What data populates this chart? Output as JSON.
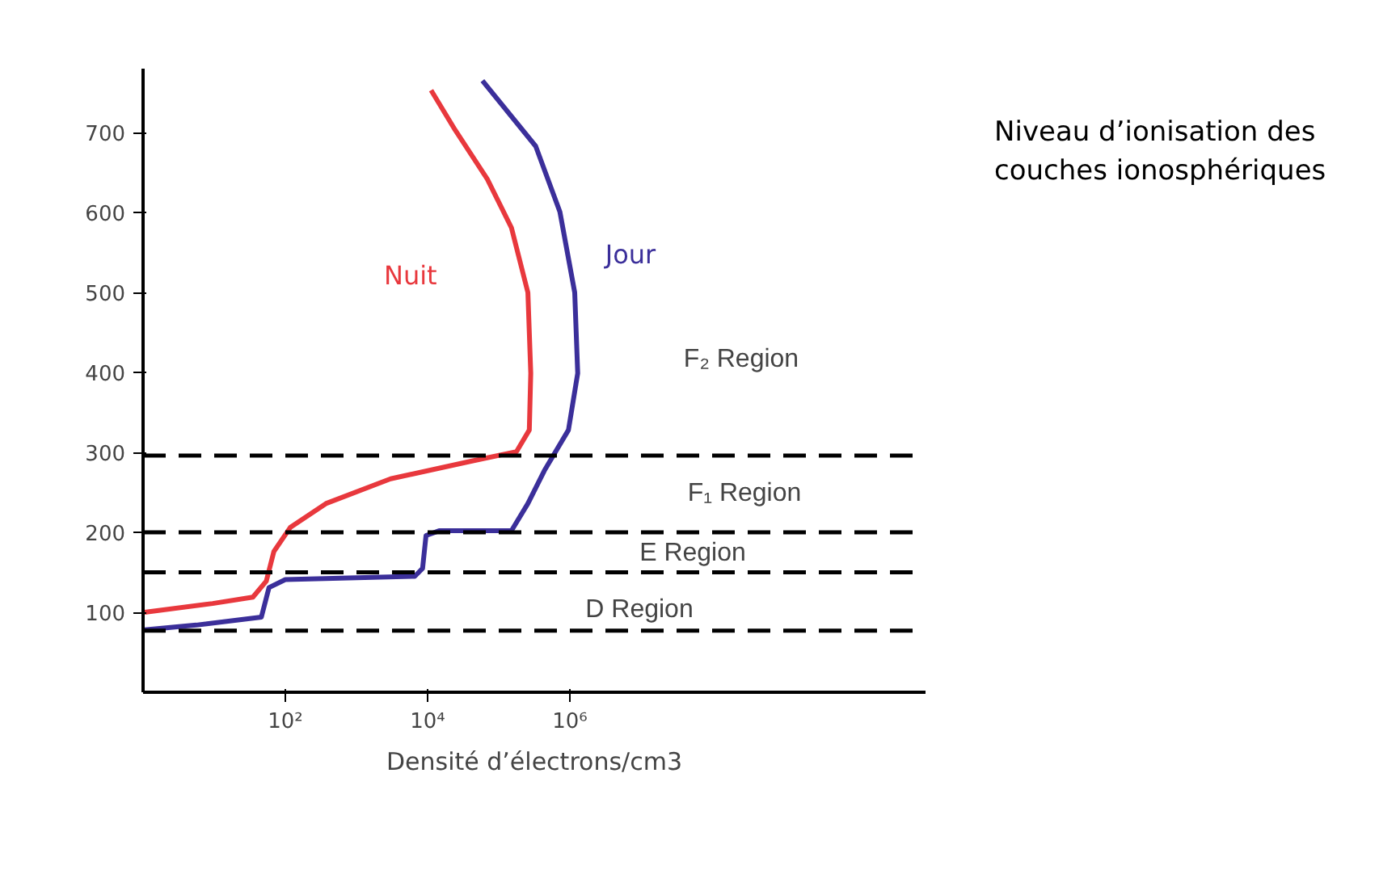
{
  "chart_data": {
    "type": "line",
    "xlabel": "Densité d’électrons/cm3",
    "log": "x",
    "xlim": [
      1,
      100000000000
    ],
    "ylim": [
      0,
      780
    ],
    "xticks": [
      {
        "value": 100,
        "label": "10²"
      },
      {
        "value": 10000,
        "label": "10⁴"
      },
      {
        "value": 1000000,
        "label": "10⁶"
      }
    ],
    "yticks": [
      100,
      200,
      300,
      400,
      500,
      600,
      700
    ],
    "grid": false,
    "marker": "none",
    "line_style": "solid",
    "series": [
      {
        "name": "Nuit",
        "color": "#e8383d",
        "x": [
          1.05,
          9.5,
          35,
          54,
          69,
          117,
          372,
          3020,
          40700,
          178000,
          269000,
          282000,
          257000,
          151000,
          69000,
          24500,
          11200
        ],
        "values": [
          100,
          111,
          119,
          139,
          176,
          206,
          236,
          267,
          289,
          301,
          328,
          399,
          500,
          581,
          642,
          703,
          753
        ]
      },
      {
        "name": "Jour",
        "color": "#3b2f9a",
        "x": [
          1.05,
          5.6,
          46,
          59,
          100,
          6600,
          8500,
          9500,
          14500,
          151000,
          257000,
          437000,
          955000,
          1290000,
          1170000,
          724000,
          331000,
          59000
        ],
        "values": [
          78,
          84,
          94,
          131,
          141,
          145,
          155,
          196,
          202,
          202,
          236,
          277,
          328,
          399,
          500,
          601,
          683,
          765
        ]
      }
    ],
    "ref_lines": [
      {
        "axis": "y",
        "value": 296,
        "color": "#000000",
        "line_style": "dashed"
      },
      {
        "axis": "y",
        "value": 200,
        "color": "#000000",
        "line_style": "dashed"
      },
      {
        "axis": "y",
        "value": 150,
        "color": "#000000",
        "line_style": "dashed"
      },
      {
        "axis": "y",
        "value": 77,
        "color": "#000000",
        "line_style": "dashed"
      }
    ],
    "annotations": [
      "Niveau d’ionisation des couches ionosphériques",
      "F₂ Region",
      "F₁ Region",
      "E Region",
      "D Region"
    ]
  }
}
